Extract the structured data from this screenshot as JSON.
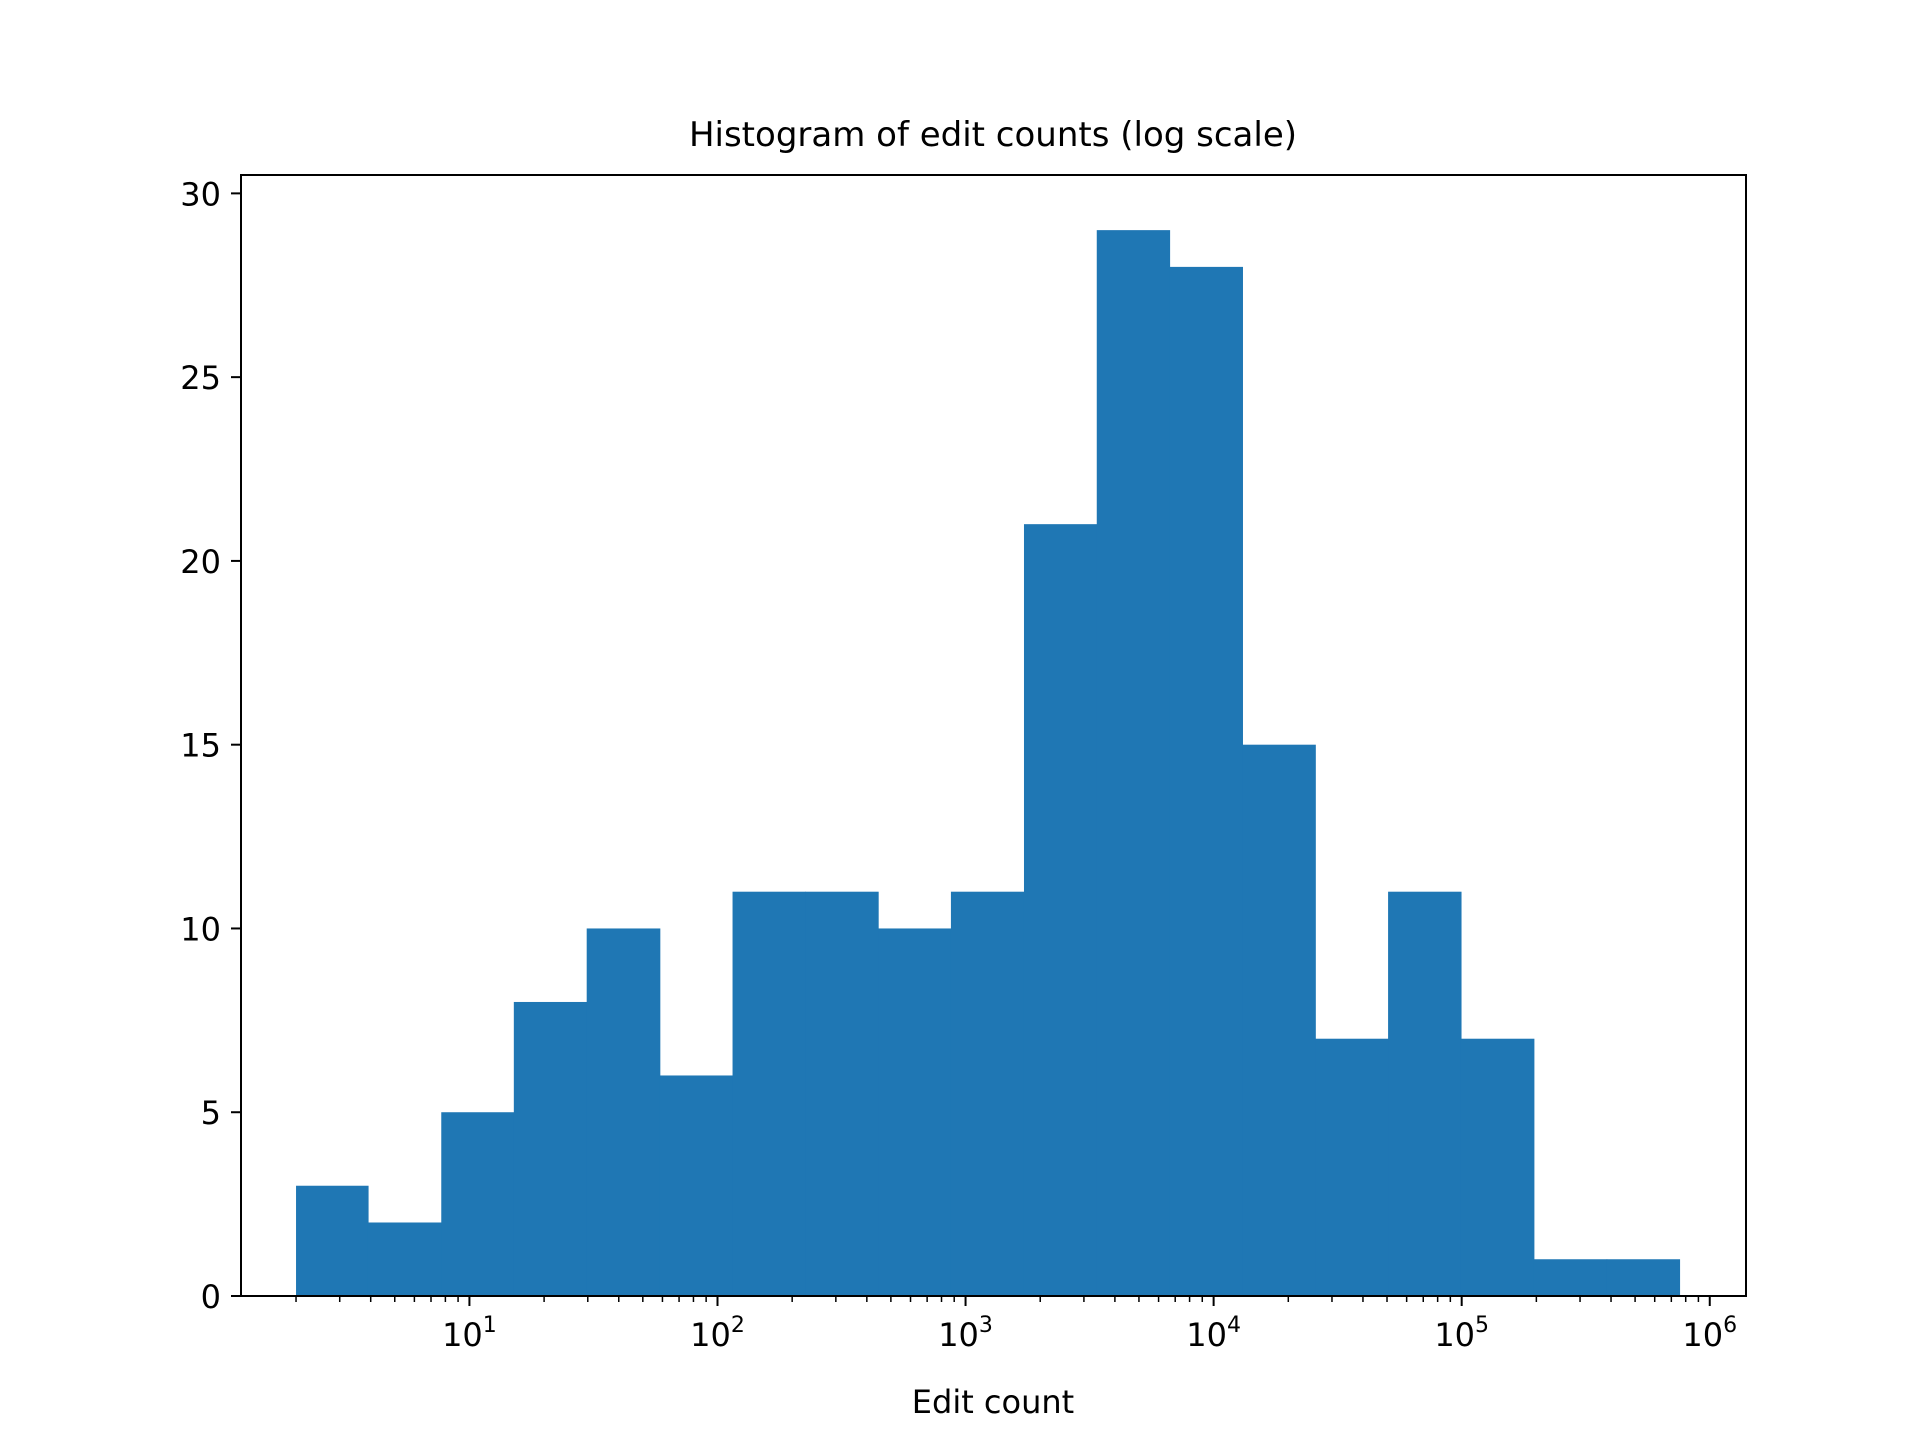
{
  "chart_data": {
    "type": "bar",
    "title": "Histogram of edit counts (log scale)",
    "xlabel": "Edit count",
    "ylabel": "",
    "x_scale": "log",
    "xlim": [
      1.2,
      1400000
    ],
    "ylim": [
      0,
      30.5
    ],
    "grid": false,
    "bar_color": "#1f77b4",
    "bin_edges": [
      2,
      3.9,
      7.7,
      15.1,
      29.7,
      58.5,
      115,
      226,
      444,
      873,
      1720,
      3380,
      6640,
      13060,
      25680,
      50500,
      99300,
      195300,
      384000,
      755000
    ],
    "counts": [
      3,
      2,
      5,
      8,
      10,
      6,
      11,
      11,
      10,
      11,
      21,
      29,
      28,
      15,
      7,
      11,
      7,
      1,
      1
    ],
    "y_ticks": [
      0,
      5,
      10,
      15,
      20,
      25,
      30
    ],
    "x_ticks": [
      {
        "value": 10,
        "base": "10",
        "exp": "1"
      },
      {
        "value": 100,
        "base": "10",
        "exp": "2"
      },
      {
        "value": 1000,
        "base": "10",
        "exp": "3"
      },
      {
        "value": 10000,
        "base": "10",
        "exp": "4"
      },
      {
        "value": 100000,
        "base": "10",
        "exp": "5"
      },
      {
        "value": 1000000,
        "base": "10",
        "exp": "6"
      }
    ]
  }
}
